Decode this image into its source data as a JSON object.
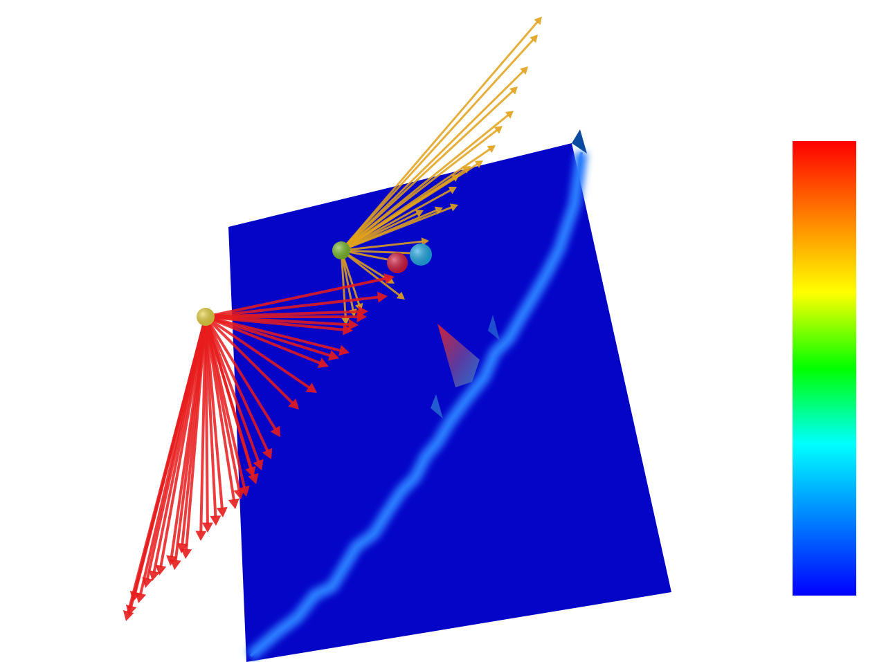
{
  "scene": {
    "surface_color": "#0505c8",
    "ridge_color": "#2a7bff",
    "arrow_groups": [
      {
        "name": "orange",
        "color": "#e2a21a",
        "count": 22
      },
      {
        "name": "red",
        "color": "#e81c1c",
        "count": 34
      }
    ],
    "markers": [
      {
        "name": "green",
        "color": "#7ab82a"
      },
      {
        "name": "yellow",
        "color": "#e8d23a"
      },
      {
        "name": "crimson",
        "color": "#d2133a"
      },
      {
        "name": "cyan",
        "color": "#1aa7e6"
      }
    ]
  },
  "colorbar": {
    "colormap": "jet",
    "stops": [
      "#ff0000",
      "#ff8000",
      "#ffff00",
      "#00ff00",
      "#00ffff",
      "#0080ff",
      "#0000ff"
    ]
  }
}
